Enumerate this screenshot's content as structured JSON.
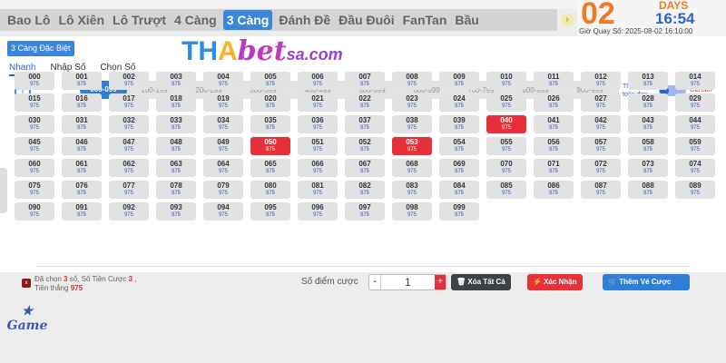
{
  "tabs": [
    "Bao Lô",
    "Lô Xiên",
    "Lô Trượt",
    "4 Càng",
    "3 Càng",
    "Đánh Đề",
    "Đầu Đuôi",
    "FanTan",
    "Bầu"
  ],
  "active_tab": "3 Càng",
  "timer": {
    "days_value": "02",
    "days_label": "DAYS",
    "clock": "16:54",
    "draw_time": "Giờ Quay Số: 2025-08-02 16:10:00"
  },
  "watermark": {
    "t": "T",
    "h": "H",
    "a": "A",
    "bet": "bet",
    "sa": "sa.com"
  },
  "subtag": "3 Càng Đặc Biệt",
  "modes": [
    "Nhanh",
    "Nhập Số",
    "Chọn Số"
  ],
  "ranges": [
    "000-099",
    "100-199",
    "200-299",
    "300-399",
    "400-499",
    "500-599",
    "600-699",
    "700-799",
    "800-899",
    "900-999"
  ],
  "range_badge": "3",
  "pay_label_1": "Thanh",
  "pay_label_2": "toán đơn",
  "sell_label": "Giá bán",
  "payout": "975",
  "selected": [
    "040",
    "050",
    "053"
  ],
  "summary": {
    "p1": "Đã chọn ",
    "count": "3",
    "p2": " số,  Số Tiền Cược ",
    "amount": "3",
    "p3": " ,",
    "p4": "Tiền thắng ",
    "win": "975"
  },
  "stake_label": "Số điểm cược",
  "stake_value": "1",
  "buttons": {
    "minus": "-",
    "plus": "+",
    "clear": "🗑 Xóa Tất Cả",
    "confirm": "⚡ Xác Nhận",
    "add": "🛒 Thêm Vé Cược"
  },
  "game_logo": "Game",
  "colors": {
    "accent": "#2f7fd8",
    "selected": "#e8303a",
    "timer": "#f07a26"
  }
}
